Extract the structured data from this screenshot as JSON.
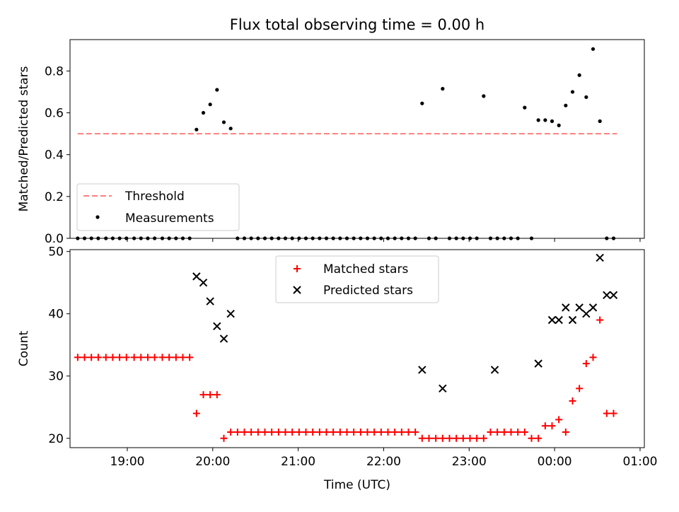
{
  "title": "Flux total observing time = 0.00 h",
  "chart_data": [
    {
      "type": "scatter",
      "ylabel": "Matched/Predicted stars",
      "xlabel": "",
      "ylim": [
        0,
        0.95
      ],
      "yticks": [
        0.0,
        0.2,
        0.4,
        0.6,
        0.8
      ],
      "ytick_labels": [
        "0.0",
        "0.2",
        "0.4",
        "0.6",
        "0.8"
      ],
      "xlim": [
        18.33,
        25.05
      ],
      "xticks": [
        19,
        20,
        21,
        22,
        23,
        24,
        25
      ],
      "xtick_labels": [],
      "legend_position": "lower-left",
      "threshold": {
        "name": "Threshold",
        "y": 0.5,
        "x_start": 18.42,
        "x_end": 24.73,
        "color": "#ff7f7f"
      },
      "series": [
        {
          "name": "Measurements",
          "color": "#000000",
          "x": [
            18.42,
            18.5,
            18.58,
            18.66,
            18.75,
            18.83,
            18.91,
            18.99,
            19.08,
            19.16,
            19.24,
            19.32,
            19.41,
            19.49,
            19.57,
            19.65,
            19.73,
            19.81,
            19.89,
            19.97,
            20.05,
            20.13,
            20.21,
            20.29,
            20.37,
            20.45,
            20.53,
            20.61,
            20.69,
            20.77,
            20.85,
            20.93,
            21.01,
            21.09,
            21.17,
            21.25,
            21.33,
            21.41,
            21.49,
            21.57,
            21.65,
            21.73,
            21.81,
            21.89,
            21.97,
            22.05,
            22.13,
            22.21,
            22.29,
            22.37,
            22.45,
            22.53,
            22.61,
            22.69,
            22.77,
            22.85,
            22.93,
            23.01,
            23.09,
            23.17,
            23.25,
            23.33,
            23.41,
            23.49,
            23.57,
            23.65,
            23.73,
            23.81,
            23.89,
            23.97,
            24.05,
            24.13,
            24.21,
            24.29,
            24.37,
            24.45,
            24.53,
            24.61,
            24.69
          ],
          "y": [
            0,
            0,
            0,
            0,
            0,
            0,
            0,
            0,
            0,
            0,
            0,
            0,
            0,
            0,
            0,
            0,
            0,
            0.52,
            0.6,
            0.64,
            0.71,
            0.555,
            0.525,
            0,
            0,
            0,
            0,
            0,
            0,
            0,
            0,
            0,
            0,
            0,
            0,
            0,
            0,
            0,
            0,
            0,
            0,
            0,
            0,
            0,
            0,
            0,
            0,
            0,
            0,
            0,
            0.645,
            0,
            0,
            0.715,
            0,
            0,
            0,
            0,
            0,
            0.68,
            0,
            0,
            0,
            0,
            0,
            0.625,
            0,
            0.565,
            0.565,
            0.56,
            0.54,
            0.635,
            0.7,
            0.78,
            0.675,
            0.905,
            0.56,
            0,
            0
          ]
        }
      ]
    },
    {
      "type": "scatter",
      "ylabel": "Count",
      "xlabel": "Time (UTC)",
      "ylim": [
        18.5,
        50.3
      ],
      "yticks": [
        20,
        30,
        40,
        50
      ],
      "ytick_labels": [
        "20",
        "30",
        "40",
        "50"
      ],
      "xlim": [
        18.33,
        25.05
      ],
      "xticks": [
        19,
        20,
        21,
        22,
        23,
        24,
        25
      ],
      "xtick_labels": [
        "19:00",
        "20:00",
        "21:00",
        "22:00",
        "23:00",
        "00:00",
        "01:00"
      ],
      "legend_position": "upper-center",
      "series": [
        {
          "name": "Matched stars",
          "color": "#ff0000",
          "marker": "plus",
          "x": [
            18.42,
            18.5,
            18.58,
            18.66,
            18.75,
            18.83,
            18.91,
            18.99,
            19.08,
            19.16,
            19.24,
            19.32,
            19.41,
            19.49,
            19.57,
            19.65,
            19.73,
            19.81,
            19.89,
            19.97,
            20.05,
            20.13,
            20.21,
            20.29,
            20.37,
            20.45,
            20.53,
            20.61,
            20.69,
            20.77,
            20.85,
            20.93,
            21.01,
            21.09,
            21.17,
            21.25,
            21.33,
            21.41,
            21.49,
            21.57,
            21.65,
            21.73,
            21.81,
            21.89,
            21.97,
            22.05,
            22.13,
            22.21,
            22.29,
            22.37,
            22.45,
            22.53,
            22.61,
            22.69,
            22.77,
            22.85,
            22.93,
            23.01,
            23.09,
            23.17,
            23.25,
            23.33,
            23.41,
            23.49,
            23.57,
            23.65,
            23.73,
            23.81,
            23.89,
            23.97,
            24.05,
            24.13,
            24.21,
            24.29,
            24.37,
            24.45,
            24.53,
            24.61,
            24.69
          ],
          "y": [
            33,
            33,
            33,
            33,
            33,
            33,
            33,
            33,
            33,
            33,
            33,
            33,
            33,
            33,
            33,
            33,
            33,
            24,
            27,
            27,
            27,
            20,
            21,
            21,
            21,
            21,
            21,
            21,
            21,
            21,
            21,
            21,
            21,
            21,
            21,
            21,
            21,
            21,
            21,
            21,
            21,
            21,
            21,
            21,
            21,
            21,
            21,
            21,
            21,
            21,
            20,
            20,
            20,
            20,
            20,
            20,
            20,
            20,
            20,
            20,
            21,
            21,
            21,
            21,
            21,
            21,
            20,
            20,
            22,
            22,
            23,
            21,
            26,
            28,
            32,
            33,
            39,
            24,
            24
          ]
        },
        {
          "name": "Predicted stars",
          "color": "#000000",
          "marker": "x",
          "x": [
            19.81,
            19.89,
            19.97,
            20.05,
            20.13,
            20.21,
            22.45,
            22.69,
            23.3,
            23.81,
            23.97,
            24.05,
            24.13,
            24.21,
            24.29,
            24.37,
            24.45,
            24.53,
            24.61,
            24.69
          ],
          "y": [
            46,
            45,
            42,
            38,
            36,
            40,
            31,
            28,
            31,
            32,
            39,
            39,
            41,
            39,
            41,
            40,
            41,
            49,
            43,
            43
          ]
        }
      ]
    }
  ]
}
